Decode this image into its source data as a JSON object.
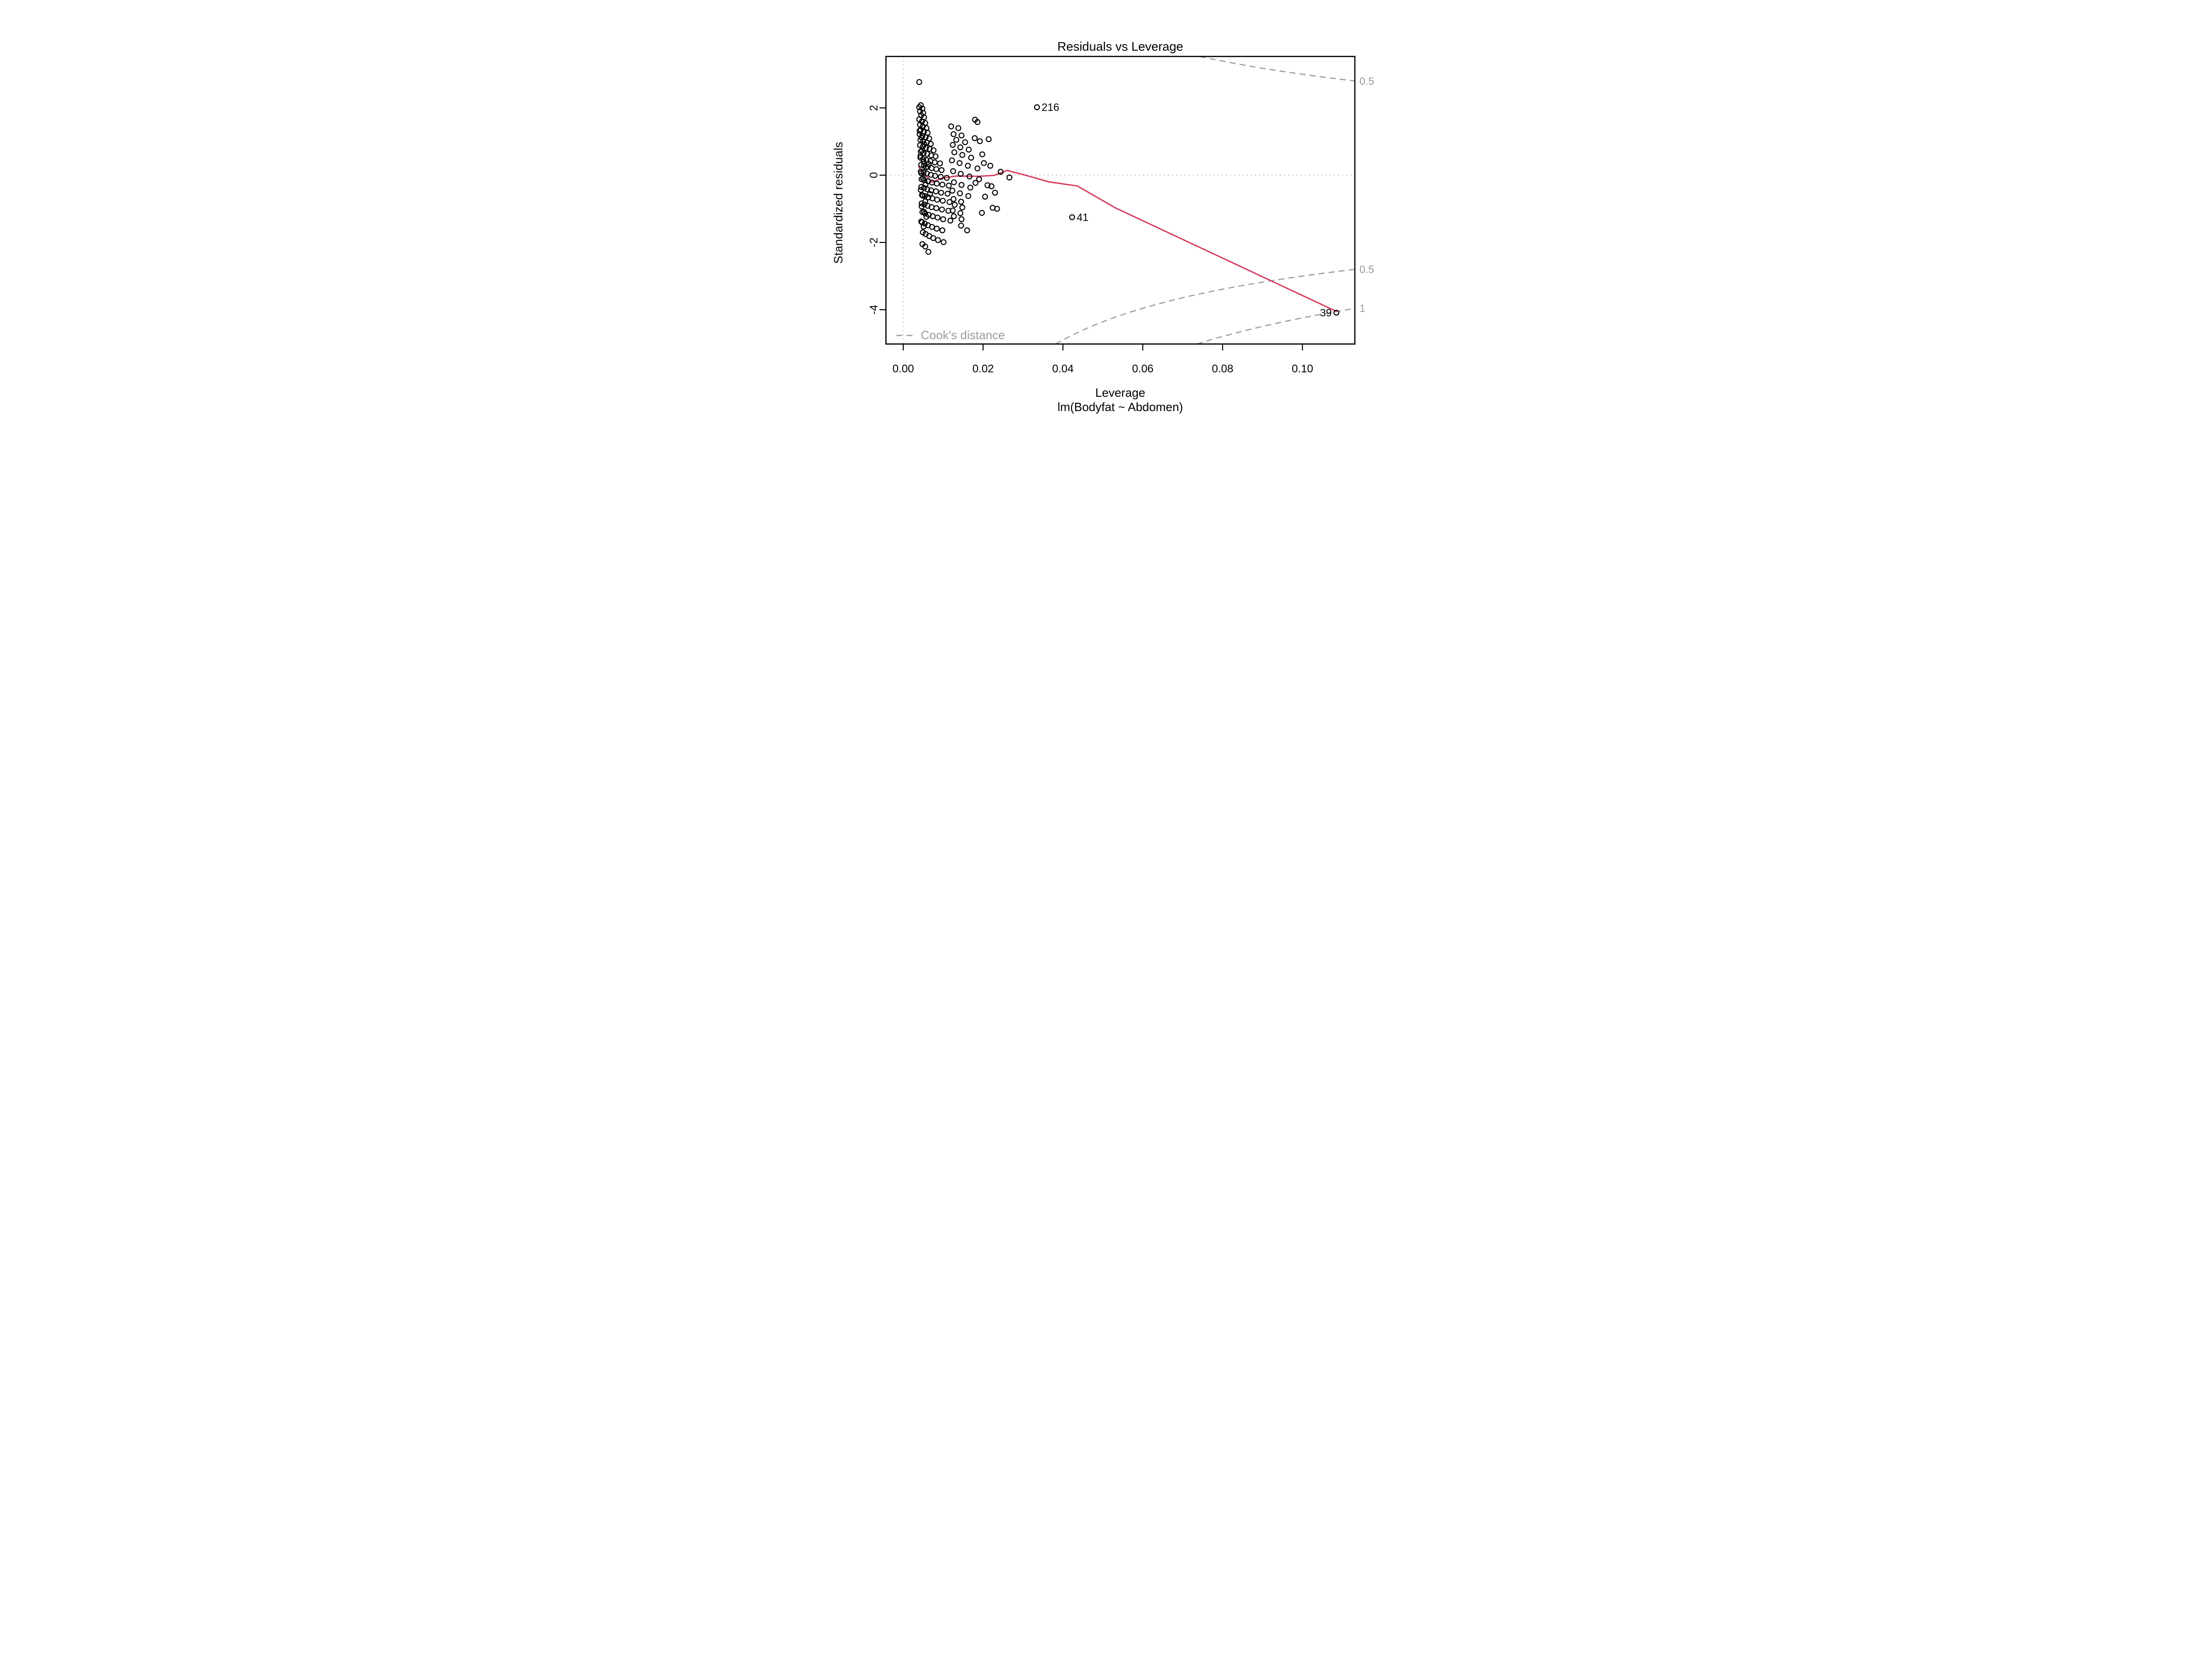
{
  "figure": {
    "title": "Residuals vs Leverage",
    "x_axis_label": "Leverage",
    "model_label": "lm(Bodyfat ~ Abdomen)",
    "y_axis_label": "Standardized residuals",
    "legend": {
      "label": "Cook's distance"
    }
  },
  "colors": {
    "point": "#000000",
    "smoother": "#d5395b",
    "contour": "#999999",
    "guide": "#b4b4b4",
    "box": "#000000",
    "gray_text": "#9b9b9b"
  },
  "chart_data": {
    "type": "scatter",
    "title": "Residuals vs Leverage",
    "xlabel": "Leverage",
    "ylabel": "Standardized residuals",
    "subtitle": "lm(Bodyfat ~ Abdomen)",
    "xlim": [
      -0.00433,
      0.11313
    ],
    "ylim": [
      -5.02,
      3.53
    ],
    "grid": false,
    "x_ticks": {
      "values": [
        0.0,
        0.02,
        0.04,
        0.06,
        0.08,
        0.1
      ],
      "labels": [
        "0.00",
        "0.02",
        "0.04",
        "0.06",
        "0.08",
        "0.10"
      ]
    },
    "y_ticks": {
      "values": [
        -4,
        -2,
        0,
        2
      ],
      "labels": [
        "-4",
        "-2",
        "0",
        "2"
      ]
    },
    "zero_residual_guide": 0,
    "zero_leverage_guide": 0,
    "points": [
      [
        0.004,
        2.77
      ],
      [
        0.0044,
        2.08
      ],
      [
        0.004,
        2.02
      ],
      [
        0.0048,
        1.98
      ],
      [
        0.0042,
        1.9
      ],
      [
        0.005,
        1.85
      ],
      [
        0.0045,
        1.78
      ],
      [
        0.0052,
        1.72
      ],
      [
        0.004,
        1.66
      ],
      [
        0.0047,
        1.6
      ],
      [
        0.0055,
        1.55
      ],
      [
        0.0042,
        1.5
      ],
      [
        0.0049,
        1.45
      ],
      [
        0.0058,
        1.4
      ],
      [
        0.0044,
        1.35
      ],
      [
        0.0052,
        1.3
      ],
      [
        0.0061,
        1.26
      ],
      [
        0.0041,
        1.22
      ],
      [
        0.0048,
        1.17
      ],
      [
        0.0056,
        1.13
      ],
      [
        0.0065,
        1.09
      ],
      [
        0.0043,
        1.05
      ],
      [
        0.005,
        1.01
      ],
      [
        0.0059,
        0.97
      ],
      [
        0.0069,
        0.93
      ],
      [
        0.0042,
        0.89
      ],
      [
        0.0049,
        0.85
      ],
      [
        0.0057,
        0.81
      ],
      [
        0.0066,
        0.78
      ],
      [
        0.0076,
        0.74
      ],
      [
        0.0044,
        0.7
      ],
      [
        0.0051,
        0.66
      ],
      [
        0.006,
        0.63
      ],
      [
        0.007,
        0.59
      ],
      [
        0.0081,
        0.56
      ],
      [
        0.0043,
        0.52
      ],
      [
        0.005,
        0.48
      ],
      [
        0.0058,
        0.45
      ],
      [
        0.0068,
        0.42
      ],
      [
        0.0079,
        0.38
      ],
      [
        0.0092,
        0.35
      ],
      [
        0.0045,
        0.31
      ],
      [
        0.0052,
        0.28
      ],
      [
        0.0061,
        0.25
      ],
      [
        0.0071,
        0.21
      ],
      [
        0.0083,
        0.18
      ],
      [
        0.0096,
        0.15
      ],
      [
        0.0044,
        0.11
      ],
      [
        0.0051,
        0.08
      ],
      [
        0.0059,
        0.05
      ],
      [
        0.0069,
        0.01
      ],
      [
        0.008,
        -0.02
      ],
      [
        0.0094,
        -0.05
      ],
      [
        0.0109,
        -0.08
      ],
      [
        0.0046,
        -0.12
      ],
      [
        0.0053,
        -0.15
      ],
      [
        0.0062,
        -0.18
      ],
      [
        0.0072,
        -0.22
      ],
      [
        0.0084,
        -0.25
      ],
      [
        0.0098,
        -0.28
      ],
      [
        0.0114,
        -0.31
      ],
      [
        0.0045,
        -0.35
      ],
      [
        0.0052,
        -0.38
      ],
      [
        0.006,
        -0.42
      ],
      [
        0.007,
        -0.45
      ],
      [
        0.0082,
        -0.48
      ],
      [
        0.0095,
        -0.52
      ],
      [
        0.0111,
        -0.55
      ],
      [
        0.0047,
        -0.59
      ],
      [
        0.0054,
        -0.62
      ],
      [
        0.0063,
        -0.66
      ],
      [
        0.0073,
        -0.69
      ],
      [
        0.0085,
        -0.73
      ],
      [
        0.0099,
        -0.76
      ],
      [
        0.0116,
        -0.8
      ],
      [
        0.0046,
        -0.84
      ],
      [
        0.0053,
        -0.87
      ],
      [
        0.0061,
        -0.91
      ],
      [
        0.0071,
        -0.95
      ],
      [
        0.0083,
        -0.98
      ],
      [
        0.0097,
        -1.02
      ],
      [
        0.0113,
        -1.06
      ],
      [
        0.0048,
        -1.1
      ],
      [
        0.0055,
        -1.14
      ],
      [
        0.0064,
        -1.18
      ],
      [
        0.0074,
        -1.22
      ],
      [
        0.0086,
        -1.26
      ],
      [
        0.01,
        -1.31
      ],
      [
        0.0118,
        -1.35
      ],
      [
        0.0047,
        -1.4
      ],
      [
        0.0054,
        -1.44
      ],
      [
        0.0062,
        -1.49
      ],
      [
        0.0072,
        -1.54
      ],
      [
        0.0084,
        -1.59
      ],
      [
        0.0098,
        -1.64
      ],
      [
        0.0049,
        -1.7
      ],
      [
        0.0056,
        -1.75
      ],
      [
        0.0065,
        -1.81
      ],
      [
        0.0075,
        -1.87
      ],
      [
        0.0087,
        -1.93
      ],
      [
        0.0101,
        -1.99
      ],
      [
        0.0048,
        -2.05
      ],
      [
        0.0055,
        -2.12
      ],
      [
        0.0063,
        -2.28
      ],
      [
        0.0041,
        1.32
      ],
      [
        0.0046,
        1.12
      ],
      [
        0.0053,
        0.92
      ],
      [
        0.0047,
        0.73
      ],
      [
        0.0043,
        0.57
      ],
      [
        0.0051,
        0.4
      ],
      [
        0.0057,
        0.23
      ],
      [
        0.0045,
        0.06
      ],
      [
        0.005,
        -0.1
      ],
      [
        0.0056,
        -0.27
      ],
      [
        0.0044,
        -0.44
      ],
      [
        0.0049,
        -0.61
      ],
      [
        0.0055,
        -0.78
      ],
      [
        0.0046,
        -0.93
      ],
      [
        0.0052,
        -1.09
      ],
      [
        0.0058,
        -1.24
      ],
      [
        0.0045,
        -1.38
      ],
      [
        0.0051,
        -1.53
      ],
      [
        0.0064,
        0.33
      ],
      [
        0.0067,
        -0.56
      ],
      [
        0.012,
        1.45
      ],
      [
        0.0138,
        1.4
      ],
      [
        0.0126,
        1.22
      ],
      [
        0.0146,
        1.18
      ],
      [
        0.0133,
        1.05
      ],
      [
        0.0155,
        0.98
      ],
      [
        0.0124,
        0.9
      ],
      [
        0.0143,
        0.83
      ],
      [
        0.0164,
        0.76
      ],
      [
        0.0128,
        0.68
      ],
      [
        0.0148,
        0.6
      ],
      [
        0.017,
        0.52
      ],
      [
        0.0122,
        0.44
      ],
      [
        0.0141,
        0.36
      ],
      [
        0.0162,
        0.28
      ],
      [
        0.0186,
        0.2
      ],
      [
        0.0125,
        0.12
      ],
      [
        0.0144,
        0.04
      ],
      [
        0.0166,
        -0.04
      ],
      [
        0.019,
        -0.12
      ],
      [
        0.0127,
        -0.21
      ],
      [
        0.0146,
        -0.29
      ],
      [
        0.0168,
        -0.37
      ],
      [
        0.0123,
        -0.46
      ],
      [
        0.0142,
        -0.54
      ],
      [
        0.0163,
        -0.62
      ],
      [
        0.0126,
        -0.71
      ],
      [
        0.0145,
        -0.79
      ],
      [
        0.0129,
        -0.88
      ],
      [
        0.0148,
        -0.96
      ],
      [
        0.0124,
        -1.05
      ],
      [
        0.0143,
        -1.13
      ],
      [
        0.0127,
        -1.22
      ],
      [
        0.0146,
        -1.31
      ],
      [
        0.016,
        -1.64
      ],
      [
        0.0145,
        -1.5
      ],
      [
        0.0186,
        1.58
      ],
      [
        0.0214,
        1.07
      ],
      [
        0.0192,
        1.01
      ],
      [
        0.0179,
        1.1
      ],
      [
        0.0202,
        0.36
      ],
      [
        0.0218,
        0.28
      ],
      [
        0.0244,
        0.1
      ],
      [
        0.0266,
        -0.07
      ],
      [
        0.0181,
        -0.23
      ],
      [
        0.0211,
        -0.3
      ],
      [
        0.0221,
        -0.33
      ],
      [
        0.0197,
        -1.12
      ],
      [
        0.0224,
        -0.97
      ],
      [
        0.0235,
        -1.0
      ],
      [
        0.0205,
        -0.64
      ],
      [
        0.023,
        -0.52
      ],
      [
        0.0198,
        0.62
      ],
      [
        0.018,
        1.65
      ]
    ],
    "labeled_points": [
      {
        "label": "216",
        "leverage": 0.0335,
        "residual": 2.02,
        "label_side": "right"
      },
      {
        "label": "41",
        "leverage": 0.0423,
        "residual": -1.25,
        "label_side": "right"
      },
      {
        "label": "39",
        "leverage": 0.1085,
        "residual": -4.09,
        "label_side": "left"
      }
    ],
    "smoother": {
      "name": "red smoother line",
      "points": [
        [
          0.0039,
          0.24
        ],
        [
          0.0072,
          -0.21
        ],
        [
          0.0097,
          -0.086
        ],
        [
          0.0133,
          -0.027
        ],
        [
          0.019,
          -0.034
        ],
        [
          0.0228,
          -0.007
        ],
        [
          0.026,
          0.14
        ],
        [
          0.0306,
          0.0
        ],
        [
          0.0365,
          -0.2
        ],
        [
          0.0436,
          -0.32
        ],
        [
          0.0531,
          -0.97
        ],
        [
          0.1085,
          -4.05
        ]
      ]
    },
    "cooks_distance": {
      "legend_label": "Cook's distance",
      "model_rank_p": 2,
      "levels": [
        0.5,
        1
      ],
      "visible_contour_labels": [
        {
          "text": "0.5",
          "level": 0.5,
          "sign": 1
        },
        {
          "text": "0.5",
          "level": 0.5,
          "sign": -1
        },
        {
          "text": "1",
          "level": 1,
          "sign": -1
        }
      ]
    },
    "legend_position": "bottom-left"
  }
}
